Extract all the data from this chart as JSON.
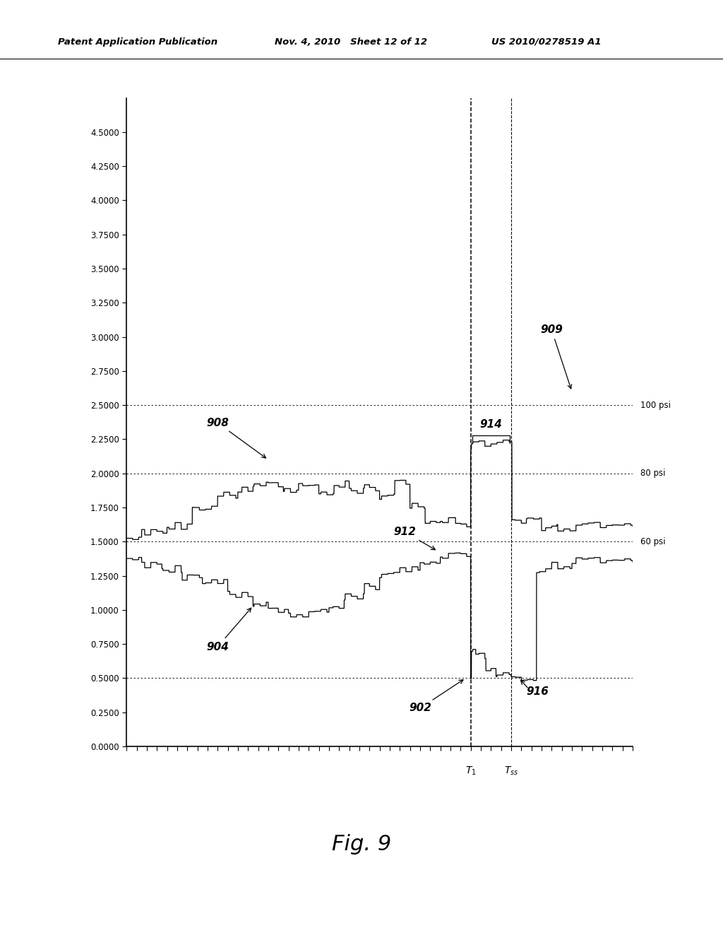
{
  "header_left": "Patent Application Publication",
  "header_mid": "Nov. 4, 2010   Sheet 12 of 12",
  "header_right": "US 2010/0278519 A1",
  "figure_caption": "Fig. 9",
  "yticks": [
    0.0,
    0.25,
    0.5,
    0.75,
    1.0,
    1.25,
    1.5,
    1.75,
    2.0,
    2.25,
    2.5,
    2.75,
    3.0,
    3.25,
    3.5,
    3.75,
    4.0,
    4.25,
    4.5
  ],
  "ytick_labels": [
    "0.0000",
    "0.2500",
    "0.5000",
    "0.7500",
    "1.0000",
    "1.2500",
    "1.5000",
    "1.7500",
    "2.0000",
    "2.2500",
    "2.5000",
    "2.7500",
    "3.0000",
    "3.2500",
    "3.5000",
    "3.7500",
    "4.0000",
    "4.2500",
    "4.5000"
  ],
  "ylim": [
    0.0,
    4.75
  ],
  "xlim": [
    0,
    100
  ],
  "T1_x": 68,
  "Tss_x": 76,
  "background_color": "#ffffff"
}
